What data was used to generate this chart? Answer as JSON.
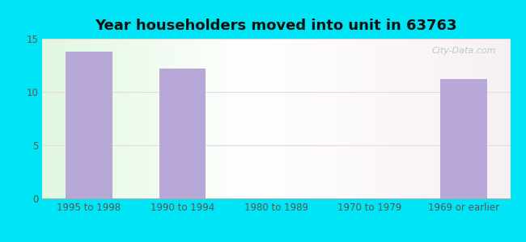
{
  "title": "Year householders moved into unit in 63763",
  "categories": [
    "1995 to 1998",
    "1990 to 1994",
    "1980 to 1989",
    "1970 to 1979",
    "1969 or earlier"
  ],
  "values": [
    13.8,
    12.2,
    0,
    0,
    11.2
  ],
  "bar_color": "#b8a8d8",
  "ylim": [
    0,
    15
  ],
  "yticks": [
    0,
    5,
    10,
    15
  ],
  "bg_outer": "#00e5f5",
  "title_fontsize": 13,
  "tick_fontsize": 8.5,
  "watermark": "City-Data.com"
}
